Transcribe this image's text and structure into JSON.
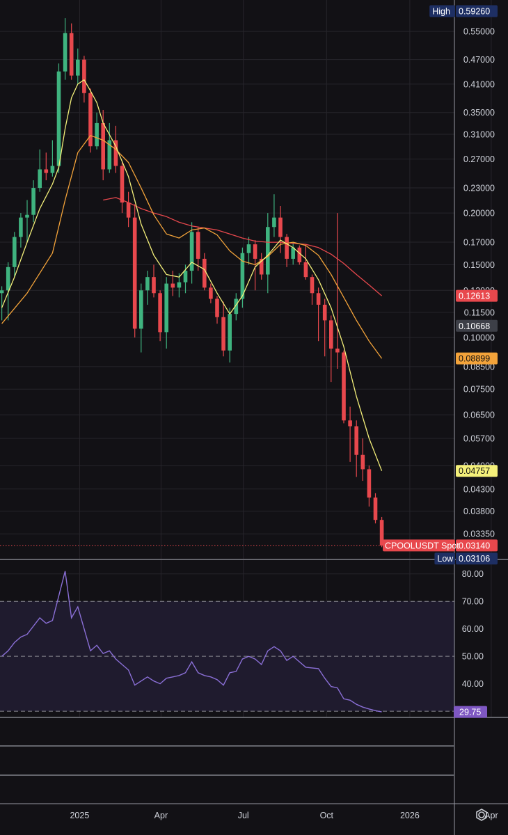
{
  "chart_data": {
    "type": "candlestick",
    "symbol_label": "CPOOLUSDT Spot",
    "scale": "log",
    "y_ticks": [
      "0.55000",
      "0.47000",
      "0.41000",
      "0.35000",
      "0.31000",
      "0.27000",
      "0.23000",
      "0.20000",
      "0.17000",
      "0.15000",
      "0.13000",
      "0.11500",
      "0.10000",
      "0.08500",
      "0.07500",
      "0.06500",
      "0.05700",
      "0.04900",
      "0.04300",
      "0.03800",
      "0.03350"
    ],
    "x_ticks": [
      "2025",
      "Apr",
      "Jul",
      "Oct",
      "2026",
      "Apr"
    ],
    "x_tick_dates": [
      "2025-01-01",
      "2025-04-01",
      "2025-07-01",
      "2025-10-01",
      "2026-01-01",
      "2026-04-01"
    ],
    "x_range": [
      "2024-10-05",
      "2026-05-15"
    ],
    "y_range": [
      0.0295,
      0.655
    ],
    "price_tags": [
      {
        "kind": "high",
        "label": "High",
        "value": "0.59260",
        "bg": "#1e2f63",
        "fg": "#ffffff"
      },
      {
        "kind": "ma-red",
        "value": "0.12613",
        "bg": "#e8484d",
        "fg": "#ffffff"
      },
      {
        "kind": "marker",
        "value": "0.10668",
        "bg": "#3d3f47",
        "fg": "#ffffff"
      },
      {
        "kind": "ma-orange",
        "value": "0.08899",
        "bg": "#f3a33a",
        "fg": "#111111"
      },
      {
        "kind": "ma-yellow",
        "value": "0.04757",
        "bg": "#f4f07a",
        "fg": "#111111"
      },
      {
        "kind": "last",
        "value": "0.03140",
        "bg": "#e8484d",
        "fg": "#ffffff"
      },
      {
        "kind": "low",
        "label": "Low",
        "value": "0.03106",
        "bg": "#1e2f63",
        "fg": "#ffffff"
      }
    ],
    "colors": {
      "up": "#3fb37f",
      "down": "#e8484d",
      "ma_yellow": "#f4f07a",
      "ma_orange": "#f3a33a",
      "ma_red": "#e8484d",
      "rsi": "#8a6fd6",
      "grid": "#26252b"
    },
    "candles": [
      {
        "t": "2024-10-07",
        "o": 0.128,
        "h": 0.133,
        "l": 0.11,
        "c": 0.13
      },
      {
        "t": "2024-10-14",
        "o": 0.13,
        "h": 0.152,
        "l": 0.11,
        "c": 0.148
      },
      {
        "t": "2024-10-21",
        "o": 0.148,
        "h": 0.18,
        "l": 0.14,
        "c": 0.175
      },
      {
        "t": "2024-10-28",
        "o": 0.175,
        "h": 0.2,
        "l": 0.165,
        "c": 0.195
      },
      {
        "t": "2024-11-04",
        "o": 0.195,
        "h": 0.215,
        "l": 0.17,
        "c": 0.198
      },
      {
        "t": "2024-11-11",
        "o": 0.198,
        "h": 0.24,
        "l": 0.19,
        "c": 0.23
      },
      {
        "t": "2024-11-18",
        "o": 0.23,
        "h": 0.285,
        "l": 0.225,
        "c": 0.255
      },
      {
        "t": "2024-11-25",
        "o": 0.255,
        "h": 0.28,
        "l": 0.24,
        "c": 0.25
      },
      {
        "t": "2024-12-02",
        "o": 0.25,
        "h": 0.3,
        "l": 0.245,
        "c": 0.26
      },
      {
        "t": "2024-12-09",
        "o": 0.26,
        "h": 0.46,
        "l": 0.25,
        "c": 0.44
      },
      {
        "t": "2024-12-16",
        "o": 0.44,
        "h": 0.592,
        "l": 0.42,
        "c": 0.545
      },
      {
        "t": "2024-12-23",
        "o": 0.545,
        "h": 0.575,
        "l": 0.42,
        "c": 0.43
      },
      {
        "t": "2024-12-30",
        "o": 0.43,
        "h": 0.5,
        "l": 0.41,
        "c": 0.47
      },
      {
        "t": "2025-01-06",
        "o": 0.47,
        "h": 0.48,
        "l": 0.37,
        "c": 0.39
      },
      {
        "t": "2025-01-13",
        "o": 0.39,
        "h": 0.4,
        "l": 0.28,
        "c": 0.29
      },
      {
        "t": "2025-01-20",
        "o": 0.29,
        "h": 0.35,
        "l": 0.285,
        "c": 0.33
      },
      {
        "t": "2025-01-27",
        "o": 0.33,
        "h": 0.355,
        "l": 0.24,
        "c": 0.255
      },
      {
        "t": "2025-02-03",
        "o": 0.255,
        "h": 0.33,
        "l": 0.25,
        "c": 0.3
      },
      {
        "t": "2025-02-10",
        "o": 0.3,
        "h": 0.325,
        "l": 0.25,
        "c": 0.26
      },
      {
        "t": "2025-02-17",
        "o": 0.26,
        "h": 0.265,
        "l": 0.2,
        "c": 0.212
      },
      {
        "t": "2025-02-24",
        "o": 0.212,
        "h": 0.225,
        "l": 0.185,
        "c": 0.195
      },
      {
        "t": "2025-03-03",
        "o": 0.195,
        "h": 0.21,
        "l": 0.1,
        "c": 0.105
      },
      {
        "t": "2025-03-10",
        "o": 0.105,
        "h": 0.135,
        "l": 0.092,
        "c": 0.13
      },
      {
        "t": "2025-03-17",
        "o": 0.13,
        "h": 0.145,
        "l": 0.12,
        "c": 0.14
      },
      {
        "t": "2025-03-24",
        "o": 0.14,
        "h": 0.15,
        "l": 0.125,
        "c": 0.128
      },
      {
        "t": "2025-03-31",
        "o": 0.128,
        "h": 0.13,
        "l": 0.098,
        "c": 0.103
      },
      {
        "t": "2025-04-07",
        "o": 0.103,
        "h": 0.14,
        "l": 0.094,
        "c": 0.135
      },
      {
        "t": "2025-04-14",
        "o": 0.135,
        "h": 0.145,
        "l": 0.126,
        "c": 0.132
      },
      {
        "t": "2025-04-21",
        "o": 0.132,
        "h": 0.143,
        "l": 0.125,
        "c": 0.136
      },
      {
        "t": "2025-04-28",
        "o": 0.136,
        "h": 0.15,
        "l": 0.128,
        "c": 0.145
      },
      {
        "t": "2025-05-05",
        "o": 0.145,
        "h": 0.19,
        "l": 0.135,
        "c": 0.18
      },
      {
        "t": "2025-05-12",
        "o": 0.18,
        "h": 0.185,
        "l": 0.145,
        "c": 0.155
      },
      {
        "t": "2025-05-19",
        "o": 0.155,
        "h": 0.16,
        "l": 0.13,
        "c": 0.132
      },
      {
        "t": "2025-05-26",
        "o": 0.132,
        "h": 0.135,
        "l": 0.121,
        "c": 0.124
      },
      {
        "t": "2025-06-02",
        "o": 0.124,
        "h": 0.126,
        "l": 0.108,
        "c": 0.112
      },
      {
        "t": "2025-06-09",
        "o": 0.112,
        "h": 0.122,
        "l": 0.09,
        "c": 0.093
      },
      {
        "t": "2025-06-16",
        "o": 0.093,
        "h": 0.118,
        "l": 0.087,
        "c": 0.114
      },
      {
        "t": "2025-06-23",
        "o": 0.114,
        "h": 0.128,
        "l": 0.11,
        "c": 0.124
      },
      {
        "t": "2025-06-30",
        "o": 0.124,
        "h": 0.165,
        "l": 0.118,
        "c": 0.16
      },
      {
        "t": "2025-07-07",
        "o": 0.16,
        "h": 0.175,
        "l": 0.15,
        "c": 0.168
      },
      {
        "t": "2025-07-14",
        "o": 0.168,
        "h": 0.172,
        "l": 0.13,
        "c": 0.155
      },
      {
        "t": "2025-07-21",
        "o": 0.155,
        "h": 0.16,
        "l": 0.138,
        "c": 0.142
      },
      {
        "t": "2025-07-28",
        "o": 0.142,
        "h": 0.2,
        "l": 0.128,
        "c": 0.185
      },
      {
        "t": "2025-08-04",
        "o": 0.185,
        "h": 0.222,
        "l": 0.175,
        "c": 0.195
      },
      {
        "t": "2025-08-11",
        "o": 0.195,
        "h": 0.208,
        "l": 0.16,
        "c": 0.175
      },
      {
        "t": "2025-08-18",
        "o": 0.175,
        "h": 0.178,
        "l": 0.148,
        "c": 0.155
      },
      {
        "t": "2025-08-25",
        "o": 0.155,
        "h": 0.17,
        "l": 0.15,
        "c": 0.165
      },
      {
        "t": "2025-09-01",
        "o": 0.165,
        "h": 0.167,
        "l": 0.15,
        "c": 0.152
      },
      {
        "t": "2025-09-08",
        "o": 0.152,
        "h": 0.168,
        "l": 0.138,
        "c": 0.14
      },
      {
        "t": "2025-09-15",
        "o": 0.14,
        "h": 0.142,
        "l": 0.12,
        "c": 0.128
      },
      {
        "t": "2025-09-22",
        "o": 0.128,
        "h": 0.132,
        "l": 0.098,
        "c": 0.12
      },
      {
        "t": "2025-09-29",
        "o": 0.12,
        "h": 0.124,
        "l": 0.09,
        "c": 0.11
      },
      {
        "t": "2025-10-06",
        "o": 0.11,
        "h": 0.113,
        "l": 0.078,
        "c": 0.094
      },
      {
        "t": "2025-10-13",
        "o": 0.094,
        "h": 0.2,
        "l": 0.084,
        "c": 0.092
      },
      {
        "t": "2025-10-20",
        "o": 0.092,
        "h": 0.093,
        "l": 0.062,
        "c": 0.063
      },
      {
        "t": "2025-10-27",
        "o": 0.063,
        "h": 0.068,
        "l": 0.05,
        "c": 0.061
      },
      {
        "t": "2025-11-03",
        "o": 0.061,
        "h": 0.063,
        "l": 0.046,
        "c": 0.052
      },
      {
        "t": "2025-11-10",
        "o": 0.052,
        "h": 0.057,
        "l": 0.045,
        "c": 0.048
      },
      {
        "t": "2025-11-17",
        "o": 0.048,
        "h": 0.049,
        "l": 0.039,
        "c": 0.041
      },
      {
        "t": "2025-11-24",
        "o": 0.041,
        "h": 0.042,
        "l": 0.0355,
        "c": 0.0362
      },
      {
        "t": "2025-12-01",
        "o": 0.0362,
        "h": 0.0368,
        "l": 0.0311,
        "c": 0.0314
      }
    ],
    "ma_yellow": [
      [
        "2024-10-07",
        0.118
      ],
      [
        "2024-10-21",
        0.14
      ],
      [
        "2024-11-04",
        0.17
      ],
      [
        "2024-11-18",
        0.205
      ],
      [
        "2024-12-02",
        0.235
      ],
      [
        "2024-12-09",
        0.258
      ],
      [
        "2024-12-16",
        0.32
      ],
      [
        "2024-12-23",
        0.38
      ],
      [
        "2024-12-30",
        0.41
      ],
      [
        "2025-01-06",
        0.42
      ],
      [
        "2025-01-13",
        0.395
      ],
      [
        "2025-01-20",
        0.37
      ],
      [
        "2025-01-27",
        0.33
      ],
      [
        "2025-02-10",
        0.29
      ],
      [
        "2025-02-24",
        0.245
      ],
      [
        "2025-03-10",
        0.188
      ],
      [
        "2025-03-24",
        0.158
      ],
      [
        "2025-04-07",
        0.142
      ],
      [
        "2025-04-21",
        0.14
      ],
      [
        "2025-05-05",
        0.152
      ],
      [
        "2025-05-19",
        0.146
      ],
      [
        "2025-06-02",
        0.128
      ],
      [
        "2025-06-16",
        0.114
      ],
      [
        "2025-06-30",
        0.126
      ],
      [
        "2025-07-14",
        0.148
      ],
      [
        "2025-07-28",
        0.158
      ],
      [
        "2025-08-11",
        0.172
      ],
      [
        "2025-08-25",
        0.165
      ],
      [
        "2025-09-08",
        0.155
      ],
      [
        "2025-09-22",
        0.138
      ],
      [
        "2025-10-06",
        0.118
      ],
      [
        "2025-10-20",
        0.095
      ],
      [
        "2025-11-03",
        0.072
      ],
      [
        "2025-11-17",
        0.057
      ],
      [
        "2025-12-01",
        0.04757
      ]
    ],
    "ma_orange": [
      [
        "2024-10-07",
        0.108
      ],
      [
        "2024-11-04",
        0.128
      ],
      [
        "2024-12-02",
        0.16
      ],
      [
        "2024-12-16",
        0.215
      ],
      [
        "2024-12-30",
        0.28
      ],
      [
        "2025-01-13",
        0.308
      ],
      [
        "2025-01-27",
        0.3
      ],
      [
        "2025-02-10",
        0.285
      ],
      [
        "2025-02-24",
        0.265
      ],
      [
        "2025-03-10",
        0.23
      ],
      [
        "2025-03-24",
        0.198
      ],
      [
        "2025-04-07",
        0.178
      ],
      [
        "2025-04-21",
        0.174
      ],
      [
        "2025-05-05",
        0.182
      ],
      [
        "2025-05-19",
        0.184
      ],
      [
        "2025-06-02",
        0.177
      ],
      [
        "2025-06-16",
        0.162
      ],
      [
        "2025-06-30",
        0.153
      ],
      [
        "2025-07-14",
        0.15
      ],
      [
        "2025-07-28",
        0.157
      ],
      [
        "2025-08-11",
        0.168
      ],
      [
        "2025-08-25",
        0.17
      ],
      [
        "2025-09-08",
        0.167
      ],
      [
        "2025-09-22",
        0.158
      ],
      [
        "2025-10-06",
        0.142
      ],
      [
        "2025-10-20",
        0.125
      ],
      [
        "2025-11-03",
        0.11
      ],
      [
        "2025-11-17",
        0.098
      ],
      [
        "2025-12-01",
        0.08899
      ]
    ],
    "ma_red": [
      [
        "2025-01-27",
        0.215
      ],
      [
        "2025-02-10",
        0.218
      ],
      [
        "2025-02-24",
        0.212
      ],
      [
        "2025-03-10",
        0.205
      ],
      [
        "2025-03-24",
        0.2
      ],
      [
        "2025-04-07",
        0.196
      ],
      [
        "2025-04-21",
        0.19
      ],
      [
        "2025-05-05",
        0.186
      ],
      [
        "2025-05-19",
        0.184
      ],
      [
        "2025-06-02",
        0.182
      ],
      [
        "2025-06-16",
        0.178
      ],
      [
        "2025-06-30",
        0.174
      ],
      [
        "2025-07-14",
        0.171
      ],
      [
        "2025-07-28",
        0.17
      ],
      [
        "2025-08-11",
        0.17
      ],
      [
        "2025-08-25",
        0.169
      ],
      [
        "2025-09-08",
        0.168
      ],
      [
        "2025-09-22",
        0.165
      ],
      [
        "2025-10-06",
        0.159
      ],
      [
        "2025-10-20",
        0.151
      ],
      [
        "2025-11-03",
        0.142
      ],
      [
        "2025-11-17",
        0.134
      ],
      [
        "2025-12-01",
        0.12613
      ]
    ],
    "rsi": {
      "y_ticks": [
        "80.00",
        "70.00",
        "60.00",
        "50.00",
        "40.00"
      ],
      "bands": [
        70,
        50,
        30
      ],
      "range": [
        28,
        85
      ],
      "last_label": "29.75",
      "points": [
        [
          "2024-10-07",
          50.0
        ],
        [
          "2024-10-14",
          52.0
        ],
        [
          "2024-10-21",
          55.0
        ],
        [
          "2024-10-28",
          57.0
        ],
        [
          "2024-11-04",
          58.0
        ],
        [
          "2024-11-11",
          61.0
        ],
        [
          "2024-11-18",
          64.0
        ],
        [
          "2024-11-25",
          62.0
        ],
        [
          "2024-12-02",
          63.0
        ],
        [
          "2024-12-09",
          72.0
        ],
        [
          "2024-12-16",
          81.0
        ],
        [
          "2024-12-23",
          64.0
        ],
        [
          "2024-12-30",
          68.0
        ],
        [
          "2025-01-06",
          60.0
        ],
        [
          "2025-01-13",
          52.0
        ],
        [
          "2025-01-20",
          54.0
        ],
        [
          "2025-01-27",
          51.0
        ],
        [
          "2025-02-03",
          52.0
        ],
        [
          "2025-02-10",
          49.0
        ],
        [
          "2025-02-17",
          47.0
        ],
        [
          "2025-02-24",
          45.0
        ],
        [
          "2025-03-03",
          39.5
        ],
        [
          "2025-03-10",
          41.0
        ],
        [
          "2025-03-17",
          42.5
        ],
        [
          "2025-03-24",
          41.0
        ],
        [
          "2025-03-31",
          40.0
        ],
        [
          "2025-04-07",
          42.0
        ],
        [
          "2025-04-14",
          42.5
        ],
        [
          "2025-04-21",
          43.0
        ],
        [
          "2025-04-28",
          44.0
        ],
        [
          "2025-05-05",
          48.0
        ],
        [
          "2025-05-12",
          44.0
        ],
        [
          "2025-05-19",
          43.0
        ],
        [
          "2025-05-26",
          42.5
        ],
        [
          "2025-06-02",
          41.5
        ],
        [
          "2025-06-09",
          39.5
        ],
        [
          "2025-06-16",
          44.0
        ],
        [
          "2025-06-23",
          44.5
        ],
        [
          "2025-06-30",
          49.0
        ],
        [
          "2025-07-07",
          50.0
        ],
        [
          "2025-07-14",
          49.0
        ],
        [
          "2025-07-21",
          47.0
        ],
        [
          "2025-07-28",
          52.0
        ],
        [
          "2025-08-04",
          53.5
        ],
        [
          "2025-08-11",
          52.0
        ],
        [
          "2025-08-18",
          48.5
        ],
        [
          "2025-08-25",
          50.0
        ],
        [
          "2025-09-01",
          48.0
        ],
        [
          "2025-09-08",
          46.0
        ],
        [
          "2025-09-22",
          45.5
        ],
        [
          "2025-09-29",
          42.0
        ],
        [
          "2025-10-06",
          39.0
        ],
        [
          "2025-10-13",
          38.5
        ],
        [
          "2025-10-20",
          34.5
        ],
        [
          "2025-10-27",
          34.0
        ],
        [
          "2025-11-03",
          32.5
        ],
        [
          "2025-11-10",
          31.5
        ],
        [
          "2025-11-17",
          30.8
        ],
        [
          "2025-11-24",
          30.2
        ],
        [
          "2025-12-01",
          29.75
        ]
      ]
    }
  },
  "footer": {
    "settings_icon": "gear-icon"
  }
}
